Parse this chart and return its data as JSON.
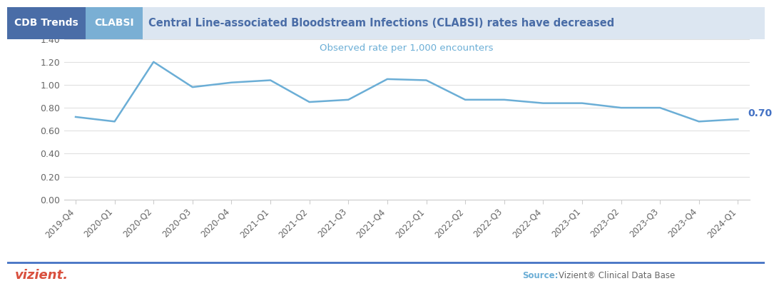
{
  "title": "Central Line-associated Bloodstream Infections (CLABSI) rates have decreased",
  "tab1": "CDB Trends",
  "tab2": "CLABSI",
  "subtitle": "Observed rate per 1,000 encounters",
  "ylabel_annotation": "0.70",
  "source_label": "Source:",
  "source_text": "Vizient® Clinical Data Base",
  "vizient_label": "vizient.",
  "categories": [
    "2019-Q4",
    "2020-Q1",
    "2020-Q2",
    "2020-Q3",
    "2020-Q4",
    "2021-Q1",
    "2021-Q2",
    "2021-Q3",
    "2021-Q4",
    "2022-Q1",
    "2022-Q2",
    "2022-Q3",
    "2022-Q4",
    "2023-Q1",
    "2023-Q2",
    "2023-Q3",
    "2023-Q4",
    "2024-Q1"
  ],
  "values": [
    0.72,
    0.68,
    1.2,
    0.98,
    1.02,
    1.04,
    0.85,
    0.87,
    1.05,
    1.04,
    0.87,
    0.87,
    0.84,
    0.84,
    0.8,
    0.8,
    0.68,
    0.7
  ],
  "line_color": "#6baed6",
  "header_bg1": "#4a6da7",
  "header_bg2": "#7aafd4",
  "header_title_color": "#4a6da7",
  "header_title_bg": "#dce6f1",
  "tab1_text_color": "#ffffff",
  "tab2_text_color": "#ffffff",
  "ylim": [
    0.0,
    1.4
  ],
  "yticks": [
    0.0,
    0.2,
    0.4,
    0.6,
    0.8,
    1.0,
    1.2,
    1.4
  ],
  "subtitle_color": "#6baed6",
  "annotation_color": "#4472c4",
  "vizient_color": "#d94f3d",
  "source_label_color": "#6baed6",
  "source_text_color": "#666666",
  "bottom_line_color": "#4472c4",
  "plot_bg": "#ffffff",
  "outer_bg": "#ffffff",
  "grid_color": "#e0e0e0",
  "tick_color": "#666666",
  "spine_color": "#cccccc"
}
